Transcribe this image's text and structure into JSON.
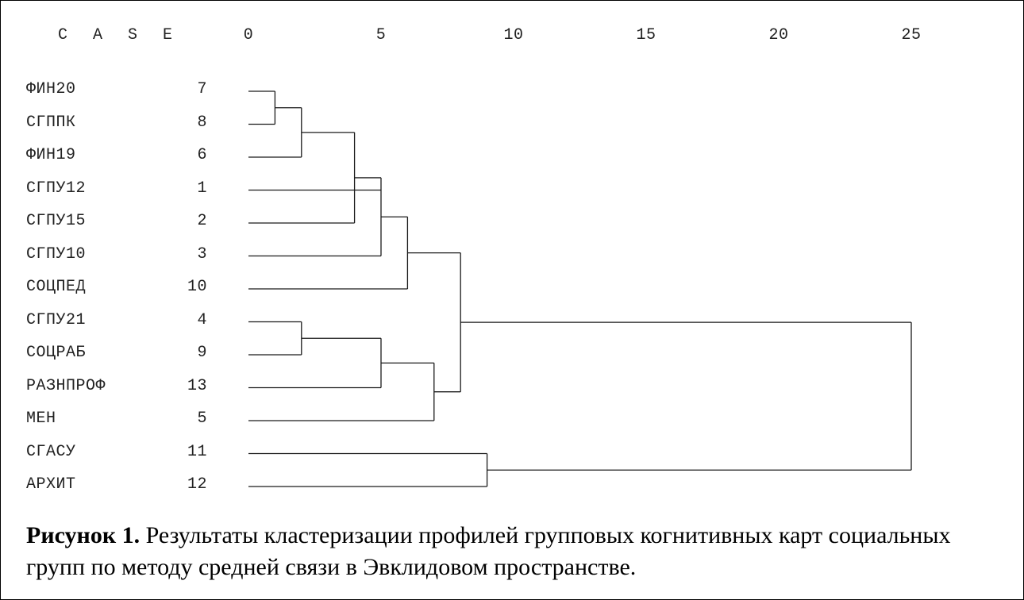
{
  "header": {
    "case_label": "C A S E"
  },
  "axis": {
    "ticks": [
      "0",
      "5",
      "10",
      "15",
      "20",
      "25"
    ],
    "range": [
      0,
      25
    ]
  },
  "leaves": [
    {
      "name": "ФИН20",
      "id": "7"
    },
    {
      "name": "СГППК",
      "id": "8"
    },
    {
      "name": "ФИН19",
      "id": "6"
    },
    {
      "name": "СГПУ12",
      "id": "1"
    },
    {
      "name": "СГПУ15",
      "id": "2"
    },
    {
      "name": "СГПУ10",
      "id": "3"
    },
    {
      "name": "СОЦПЕД",
      "id": "10"
    },
    {
      "name": "СГПУ21",
      "id": "4"
    },
    {
      "name": "СОЦРАБ",
      "id": "9"
    },
    {
      "name": "РАЗНПРОФ",
      "id": "13"
    },
    {
      "name": "МЕН",
      "id": "5"
    },
    {
      "name": "СГАСУ",
      "id": "11"
    },
    {
      "name": "АРХИТ",
      "id": "12"
    }
  ],
  "merges": [
    {
      "a": [
        "leaf",
        0
      ],
      "b": [
        "leaf",
        1
      ],
      "h": 1.0
    },
    {
      "a": [
        "node",
        0
      ],
      "b": [
        "leaf",
        2
      ],
      "h": 2.0
    },
    {
      "a": [
        "node",
        1
      ],
      "b": [
        "leaf",
        4
      ],
      "h": 4.0
    },
    {
      "a": [
        "leaf",
        7
      ],
      "b": [
        "leaf",
        8
      ],
      "h": 2.0
    },
    {
      "a": [
        "node",
        2
      ],
      "b": [
        "leaf",
        3
      ],
      "b2": [
        "leaf",
        5
      ],
      "h": 5.0
    },
    {
      "a": [
        "node",
        4
      ],
      "b": [
        "leaf",
        6
      ],
      "h": 6.0
    },
    {
      "a": [
        "node",
        3
      ],
      "b": [
        "leaf",
        9
      ],
      "h": 5.0
    },
    {
      "a": [
        "node",
        6
      ],
      "b": [
        "leaf",
        10
      ],
      "h": 7.0
    },
    {
      "a": [
        "node",
        5
      ],
      "b": [
        "node",
        7
      ],
      "h": 8.0
    },
    {
      "a": [
        "leaf",
        11
      ],
      "b": [
        "leaf",
        12
      ],
      "h": 9.0
    },
    {
      "a": [
        "node",
        8
      ],
      "b": [
        "node",
        9
      ],
      "h": 25.0
    }
  ],
  "caption": {
    "label": "Рисунок 1.",
    "text": " Результаты кластеризации профилей групповых когнитивных карт социальных групп по методу средней связи в Эвклидовом пространстве."
  }
}
